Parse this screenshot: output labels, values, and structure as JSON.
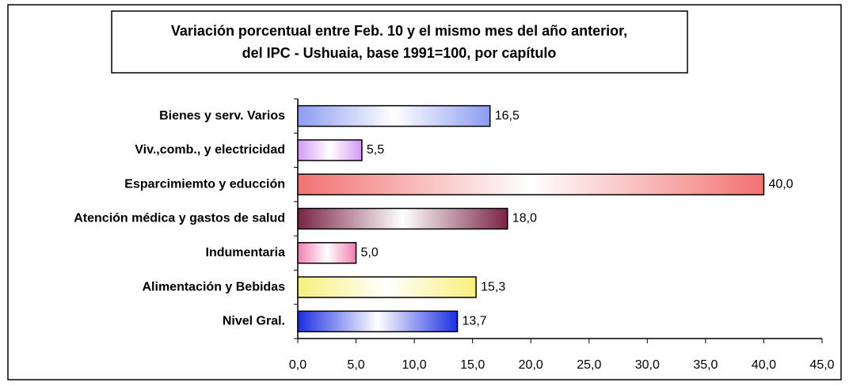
{
  "chart_data": {
    "type": "bar",
    "orientation": "horizontal",
    "title": [
      "Variación porcentual entre Feb. 10 y el mismo  mes del año anterior,",
      "del IPC - Ushuaia, base 1991=100, por capítulo"
    ],
    "categories": [
      "Bienes y serv. Varios",
      "Viv.,comb., y electricidad",
      "Esparcimiemto y educción",
      "Atención médica y gastos de salud",
      "Indumentaria",
      "Alimentación y Bebidas",
      "Nivel Gral."
    ],
    "values": [
      16.5,
      5.5,
      40.0,
      18.0,
      5.0,
      15.3,
      13.7
    ],
    "value_labels": [
      "16,5",
      "5,5",
      "40,0",
      "18,0",
      "5,0",
      "15,3",
      "13,7"
    ],
    "colors": [
      "#8c9cf2",
      "#d49af2",
      "#f27272",
      "#7a2344",
      "#f07fb2",
      "#f7f07a",
      "#1c2fe0"
    ],
    "xlim": [
      0,
      45
    ],
    "xticks": [
      {
        "value": 0,
        "label": "0,0"
      },
      {
        "value": 5,
        "label": "5,0"
      },
      {
        "value": 10,
        "label": "10,0"
      },
      {
        "value": 15,
        "label": "15,0"
      },
      {
        "value": 20,
        "label": "20,0"
      },
      {
        "value": 25,
        "label": "25,0"
      },
      {
        "value": 30,
        "label": "30,0"
      },
      {
        "value": 35,
        "label": "35,0"
      },
      {
        "value": 40,
        "label": "40,0"
      },
      {
        "value": 45,
        "label": "45,0"
      }
    ],
    "grid": false
  }
}
